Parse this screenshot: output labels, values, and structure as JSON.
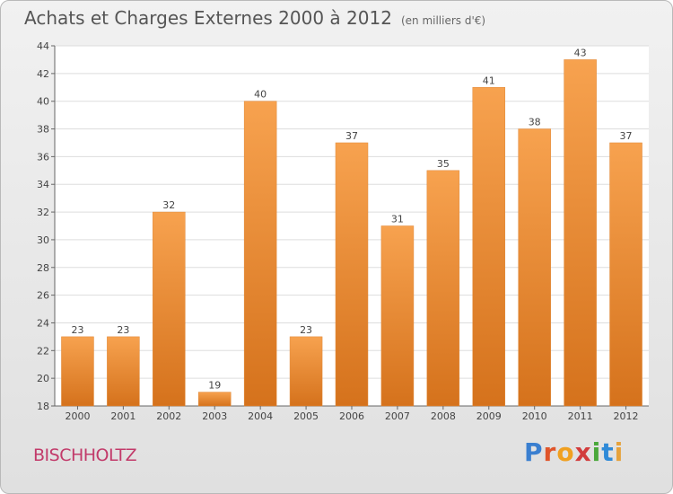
{
  "header": {
    "title": "Achats et Charges Externes 2000 à 2012",
    "subtitle": "(en milliers d'€)"
  },
  "footer": {
    "location": "BISCHHOLTZ",
    "brand": "Proxiti"
  },
  "colors": {
    "bar_light": "#f7a24f",
    "bar_dark": "#d5721c",
    "title_text": "#555555",
    "location_text": "#c23a6a"
  },
  "chart_data": {
    "type": "bar",
    "categories": [
      "2000",
      "2001",
      "2002",
      "2003",
      "2004",
      "2005",
      "2006",
      "2007",
      "2008",
      "2009",
      "2010",
      "2011",
      "2012"
    ],
    "values": [
      23,
      23,
      32,
      19,
      40,
      23,
      37,
      31,
      35,
      41,
      38,
      43,
      37
    ],
    "ylim": [
      18,
      44
    ],
    "yticks": [
      18,
      20,
      22,
      24,
      26,
      28,
      30,
      32,
      34,
      36,
      38,
      40,
      42,
      44
    ],
    "grid": true,
    "data_labels": true
  }
}
